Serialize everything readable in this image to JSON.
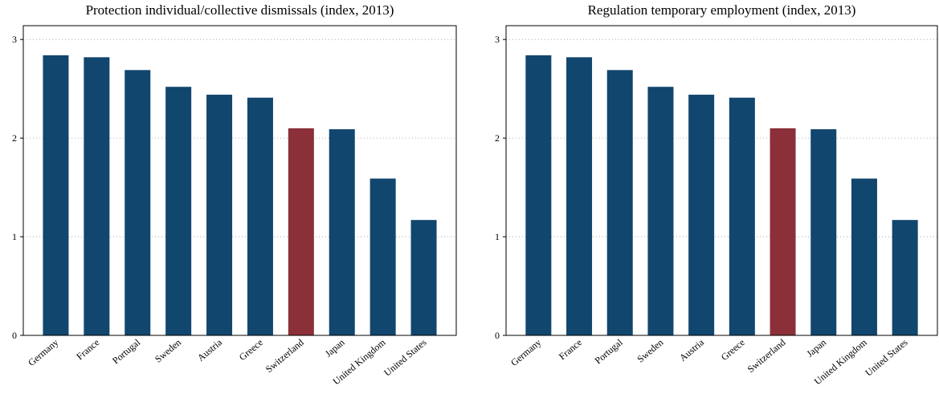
{
  "chart_data": [
    {
      "type": "bar",
      "title": "Protection individual/collective dismissals (index, 2013)",
      "categories": [
        "Germany",
        "France",
        "Portugal",
        "Sweden",
        "Austria",
        "Greece",
        "Switzerland",
        "Japan",
        "United Kingdom",
        "United States"
      ],
      "values": [
        2.84,
        2.82,
        2.69,
        2.52,
        2.44,
        2.41,
        2.1,
        2.09,
        1.59,
        1.17
      ],
      "colors": [
        "#11466e",
        "#11466e",
        "#11466e",
        "#11466e",
        "#11466e",
        "#11466e",
        "#8b3039",
        "#11466e",
        "#11466e",
        "#11466e"
      ],
      "ylim": [
        0,
        3.14
      ],
      "yticks": [
        0,
        1,
        2,
        3
      ],
      "grid": true
    },
    {
      "type": "bar",
      "title": "Regulation temporary employment (index, 2013)",
      "categories": [
        "Germany",
        "France",
        "Portugal",
        "Sweden",
        "Austria",
        "Greece",
        "Switzerland",
        "Japan",
        "United Kingdom",
        "United States"
      ],
      "values": [
        2.84,
        2.82,
        2.69,
        2.52,
        2.44,
        2.41,
        2.1,
        2.09,
        1.59,
        1.17
      ],
      "colors": [
        "#11466e",
        "#11466e",
        "#11466e",
        "#11466e",
        "#11466e",
        "#11466e",
        "#8b3039",
        "#11466e",
        "#11466e",
        "#11466e"
      ],
      "ylim": [
        0,
        3.14
      ],
      "yticks": [
        0,
        1,
        2,
        3
      ],
      "grid": true
    }
  ]
}
